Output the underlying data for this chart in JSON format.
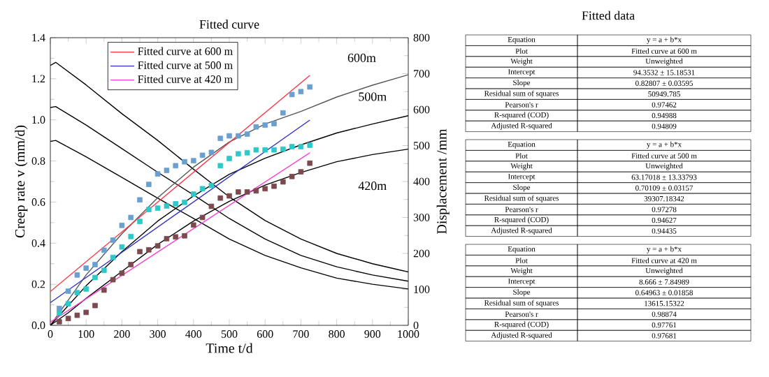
{
  "chart_data": [
    {
      "type": "line",
      "title": "Fitted curve",
      "xlabel": "Time t/d",
      "ylabel": "Creep rate v (mm/d)",
      "y2label": "Displacement /mm",
      "xlim": [
        0,
        1000
      ],
      "xticks": [
        0,
        100,
        200,
        300,
        400,
        500,
        600,
        700,
        800,
        900,
        1000
      ],
      "ylim": [
        0,
        1.4
      ],
      "yticks": [
        {
          "value": 0,
          "label": "0.0"
        },
        {
          "value": 0.2,
          "label": "0.2"
        },
        {
          "value": 0.4,
          "label": "0.4"
        },
        {
          "value": 0.6,
          "label": "0.6"
        },
        {
          "value": 0.8,
          "label": "0.8"
        },
        {
          "value": 1,
          "label": "1.0"
        },
        {
          "value": 1.2,
          "label": "1.2"
        },
        {
          "value": 1.4,
          "label": "1.4"
        }
      ],
      "y2lim": [
        0,
        800
      ],
      "y2ticks": [
        0,
        100,
        200,
        300,
        400,
        500,
        600,
        700,
        800
      ],
      "legend": "top left",
      "grid": false,
      "series": [
        {
          "type": "line",
          "color": "#000000",
          "marker": "none",
          "x": [
            0,
            15,
            100,
            200,
            300,
            400,
            500,
            600,
            700,
            800,
            900,
            1000
          ],
          "values": [
            1.265,
            1.28,
            1.17,
            1.03,
            0.9,
            0.76,
            0.625,
            0.51,
            0.42,
            0.35,
            0.3,
            0.26
          ]
        },
        {
          "type": "line",
          "color": "#000000",
          "marker": "none",
          "x": [
            0,
            15,
            100,
            200,
            300,
            400,
            500,
            600,
            700,
            800,
            900,
            1000
          ],
          "values": [
            1.06,
            1.065,
            0.975,
            0.86,
            0.745,
            0.635,
            0.52,
            0.42,
            0.34,
            0.285,
            0.245,
            0.215
          ]
        },
        {
          "type": "line",
          "color": "#000000",
          "marker": "none",
          "x": [
            0,
            15,
            100,
            200,
            289,
            400,
            500,
            600,
            700,
            800,
            900,
            1000
          ],
          "values": [
            0.895,
            0.9,
            0.82,
            0.72,
            0.63,
            0.52,
            0.42,
            0.34,
            0.28,
            0.23,
            0.2,
            0.177
          ]
        },
        {
          "type": "line",
          "color": "#555555",
          "marker": "none",
          "axis": "y2",
          "x": [
            0,
            50,
            100,
            200,
            300,
            400,
            500,
            600,
            700,
            800,
            900,
            1000
          ],
          "values": [
            0,
            70,
            140,
            255,
            355,
            440,
            510,
            560,
            595,
            635,
            668,
            697
          ]
        },
        {
          "type": "line",
          "color": "#000000",
          "marker": "none",
          "axis": "y2",
          "x": [
            0,
            50,
            100,
            200,
            300,
            400,
            500,
            600,
            700,
            800,
            900,
            1000
          ],
          "values": [
            0,
            55,
            110,
            205,
            290,
            360,
            420,
            465,
            502,
            535,
            560,
            583
          ]
        },
        {
          "type": "line",
          "color": "#000000",
          "marker": "none",
          "axis": "y2",
          "x": [
            0,
            50,
            100,
            200,
            300,
            400,
            500,
            600,
            700,
            800,
            900,
            1000
          ],
          "values": [
            0,
            35,
            75,
            150,
            225,
            290,
            345,
            390,
            425,
            455,
            475,
            490
          ]
        },
        {
          "type": "scatter",
          "color": "#6a9fd0",
          "marker": "square",
          "axis": "y2",
          "x": [
            25,
            50,
            75,
            100,
            125,
            150,
            175,
            200,
            225,
            250,
            275,
            300,
            325,
            350,
            375,
            400,
            425,
            450,
            475,
            500,
            525,
            550,
            575,
            600,
            625,
            650,
            675,
            700,
            725
          ],
          "values": [
            47,
            95,
            140,
            159,
            169,
            209,
            237,
            278,
            300,
            349,
            392,
            421,
            431,
            444,
            455,
            458,
            473,
            481,
            520,
            527,
            527,
            532,
            552,
            557,
            561,
            591,
            642,
            650,
            663
          ]
        },
        {
          "type": "scatter",
          "color": "#2fc8c8",
          "marker": "square",
          "axis": "y2",
          "x": [
            25,
            50,
            75,
            100,
            125,
            150,
            175,
            200,
            225,
            250,
            275,
            300,
            325,
            350,
            375,
            400,
            425,
            450,
            475,
            500,
            525,
            550,
            575,
            600,
            625,
            650,
            675,
            700,
            725
          ],
          "values": [
            34,
            60,
            91,
            101,
            133,
            153,
            189,
            218,
            247,
            289,
            322,
            326,
            332,
            338,
            342,
            365,
            380,
            389,
            444,
            464,
            477,
            480,
            488,
            488,
            488,
            490,
            497,
            497,
            501
          ]
        },
        {
          "type": "scatter",
          "color": "#7b4a4e",
          "marker": "square",
          "axis": "y2",
          "x": [
            25,
            50,
            75,
            100,
            125,
            150,
            175,
            200,
            225,
            250,
            275,
            300,
            325,
            350,
            375,
            400,
            425,
            450,
            475,
            500,
            525,
            550,
            575,
            600,
            625,
            650,
            675,
            700,
            725
          ],
          "values": [
            10,
            19,
            28,
            36,
            55,
            98,
            127,
            145,
            169,
            205,
            210,
            221,
            241,
            246,
            249,
            279,
            300,
            331,
            354,
            360,
            371,
            371,
            374,
            380,
            387,
            399,
            414,
            427,
            451
          ]
        },
        {
          "type": "line",
          "name": "Fitted curve at 600 m",
          "color": "#ff3340",
          "marker": "none",
          "axis": "y2",
          "x": [
            0,
            725
          ],
          "values": [
            94,
            695
          ]
        },
        {
          "type": "line",
          "name": "Fitted curve at 500 m",
          "color": "#3030c8",
          "marker": "none",
          "axis": "y2",
          "x": [
            0,
            725
          ],
          "values": [
            63,
            571
          ]
        },
        {
          "type": "line",
          "name": "Fitted curve at 420 m",
          "color": "#ff40d0",
          "marker": "none",
          "axis": "y2",
          "x": [
            0,
            725
          ],
          "values": [
            9,
            480
          ]
        }
      ],
      "annotations": [
        "600m",
        "500m",
        "420m"
      ]
    },
    {
      "type": "other",
      "title": "Fitted data",
      "annotations": [
        "Equation",
        "y = a + b*x",
        "Plot",
        "Fitted curve at 600 m",
        "Weight",
        "Unweighted",
        "Intercept",
        "94.3532 ± 15.18531",
        "Slope",
        "0.82807 ± 0.03595",
        "Residual sum of squares",
        "50949.785",
        "Pearson's r",
        "0.97462",
        "R-squared (COD)",
        "0.94988",
        "Adjusted R-squared",
        "0.94809",
        "Equation",
        "y = a + b*x",
        "Plot",
        "Fitted curve at 500 m",
        "Weight",
        "Unweighted",
        "Intercept",
        "63.17018 ± 13.33793",
        "Slope",
        "0.70109 ± 0.03157",
        "Residual sum of squares",
        "39307.18342",
        "Pearson's r",
        "0.97278",
        "R-squared (COD)",
        "0.94627",
        "Adjusted R-squared",
        "0.94435",
        "Equation",
        "y = a + b*x",
        "Plot",
        "Fitted curve at 420 m",
        "Weight",
        "Unweighted",
        "Intercept",
        "8.666 ± 7.84989",
        "Slope",
        "0.64963 ± 0.01858",
        "Residual sum of squares",
        "13615.15322",
        "Pearson's r",
        "0.98874",
        "R-squared (COD)",
        "0.97761",
        "Adjusted R-squared",
        "0.97681"
      ]
    }
  ]
}
